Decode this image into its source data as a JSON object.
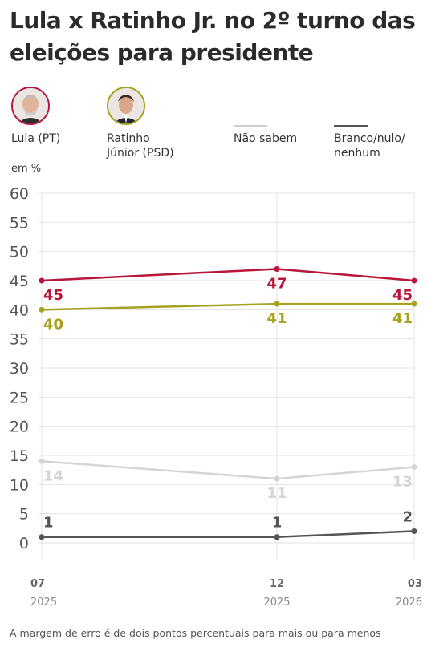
{
  "title": "Lula x Ratinho Jr. no 2º turno das eleições para presidente",
  "legend": {
    "lula": {
      "label": "Lula (PT)",
      "color": "#b8163a",
      "icon": "candidate-photo-lula"
    },
    "ratinho": {
      "label": "Ratinho Júnior (PSD)",
      "label_line1": "Ratinho",
      "label_line2": "Júnior (PSD)",
      "color": "#a6a11e",
      "icon": "candidate-photo-ratinho"
    },
    "nao_sabem": {
      "label": "Não sabem",
      "color": "#cfcfcf"
    },
    "branco": {
      "label": "Branco/nulo/nenhum",
      "label_line1": "Branco/nulo/",
      "label_line2": "nenhum",
      "color": "#555555"
    }
  },
  "units_label": "em %",
  "note": "A margem de erro é de dois pontos percentuais para mais ou para menos",
  "chart_data": {
    "type": "line",
    "x": [
      {
        "day": "07",
        "year": "2025"
      },
      {
        "day": "12",
        "year": "2025"
      },
      {
        "day": "03",
        "year": "2026"
      }
    ],
    "ylim": [
      0,
      60
    ],
    "yticks": [
      0,
      5,
      10,
      15,
      20,
      25,
      30,
      35,
      40,
      45,
      50,
      55,
      60
    ],
    "grid": true,
    "series": [
      {
        "name": "Lula (PT)",
        "values": [
          45,
          47,
          45
        ],
        "color": "#b8163a",
        "labels": [
          "45",
          "47",
          "45"
        ]
      },
      {
        "name": "Ratinho Júnior (PSD)",
        "values": [
          40,
          41,
          41
        ],
        "color": "#a6a11e",
        "labels": [
          "40",
          "41",
          "41"
        ]
      },
      {
        "name": "Não sabem",
        "values": [
          14,
          11,
          13
        ],
        "color": "#d4d4d4",
        "labels": [
          "14",
          "11",
          "13"
        ]
      },
      {
        "name": "Branco/nulo/nenhum",
        "values": [
          1,
          1,
          2
        ],
        "color": "#555555",
        "labels": [
          "1",
          "1",
          "2"
        ]
      }
    ]
  }
}
